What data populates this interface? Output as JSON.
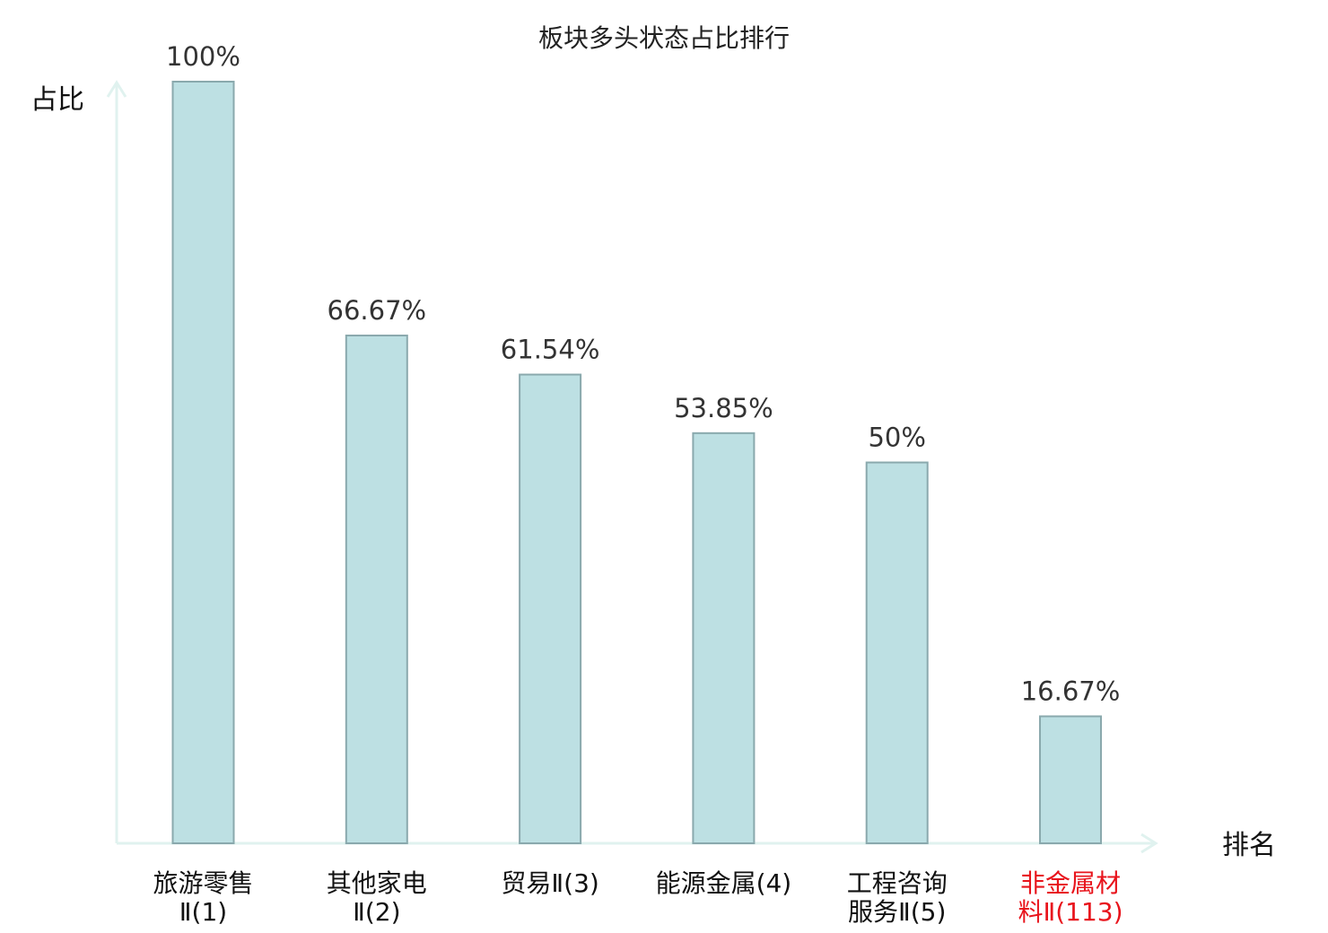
{
  "chart_data": {
    "type": "bar",
    "title": "板块多头状态占比排行",
    "ylabel": "占比",
    "xlabel": "排名",
    "ylim": [
      0,
      100
    ],
    "grid": false,
    "legend": "none",
    "categories": [
      [
        "旅游零售",
        "Ⅱ(1)"
      ],
      [
        "其他家电",
        "Ⅱ(2)"
      ],
      [
        "贸易Ⅱ(3)"
      ],
      [
        "能源金属(4)"
      ],
      [
        "工程咨询",
        "服务Ⅱ(5)"
      ],
      [
        "非金属材",
        "料Ⅱ(113)"
      ]
    ],
    "highlight_index": 5,
    "values": [
      100,
      66.67,
      61.54,
      53.85,
      50,
      16.67
    ],
    "value_labels": [
      "100%",
      "66.67%",
      "61.54%",
      "53.85%",
      "50%",
      "16.67%"
    ]
  },
  "colors": {
    "bar_fill": "#bde0e3",
    "bar_stroke": "#8aa9ad",
    "axis": "#e0f2ef",
    "category_text": "#111111",
    "highlight_text": "#e8141c"
  }
}
